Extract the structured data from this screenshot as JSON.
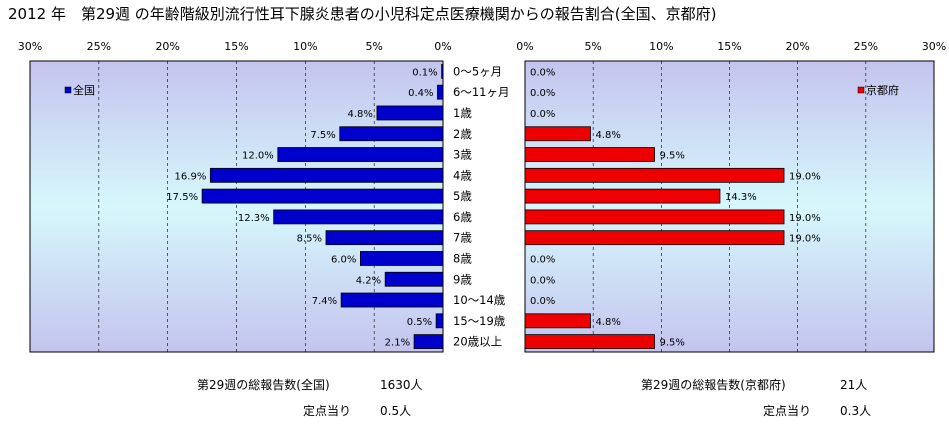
{
  "title": "2012 年　第29週 の年齢階級別流行性耳下腺炎患者の小児科定点医療機関からの報告割合(全国、京都府)",
  "colors": {
    "left_bar": "#0000cc",
    "right_bar": "#ee0000",
    "plot_bg_top": "#c8c8f0",
    "plot_bg_mid": "#d8f8fc"
  },
  "chart_data": [
    {
      "type": "bar",
      "orientation": "horizontal",
      "direction": "right-to-left",
      "legend": "全国",
      "legend_position": "top-left",
      "categories": [
        "0～5ヶ月",
        "6～11ヶ月",
        "1歳",
        "2歳",
        "3歳",
        "4歳",
        "5歳",
        "6歳",
        "7歳",
        "8歳",
        "9歳",
        "10～14歳",
        "15～19歳",
        "20歳以上"
      ],
      "values": [
        0.1,
        0.4,
        4.8,
        7.5,
        12.0,
        16.9,
        17.5,
        12.3,
        8.5,
        6.0,
        4.2,
        7.4,
        0.5,
        2.1
      ],
      "labels": [
        "0.1%",
        "0.4%",
        "4.8%",
        "7.5%",
        "12.0%",
        "16.9%",
        "17.5%",
        "12.3%",
        "8.5%",
        "6.0%",
        "4.2%",
        "7.4%",
        "0.5%",
        "2.1%"
      ],
      "xlim": [
        0,
        30
      ],
      "xticks": [
        "30%",
        "25%",
        "20%",
        "15%",
        "10%",
        "5%",
        "0%"
      ],
      "grid": true
    },
    {
      "type": "bar",
      "orientation": "horizontal",
      "direction": "left-to-right",
      "legend": "京都府",
      "legend_position": "top-right",
      "categories": [
        "0～5ヶ月",
        "6～11ヶ月",
        "1歳",
        "2歳",
        "3歳",
        "4歳",
        "5歳",
        "6歳",
        "7歳",
        "8歳",
        "9歳",
        "10～14歳",
        "15～19歳",
        "20歳以上"
      ],
      "values": [
        0.0,
        0.0,
        0.0,
        4.8,
        9.5,
        19.0,
        14.3,
        19.0,
        19.0,
        0.0,
        0.0,
        0.0,
        4.8,
        9.5
      ],
      "labels": [
        "0.0%",
        "0.0%",
        "0.0%",
        "4.8%",
        "9.5%",
        "19.0%",
        "14.3%",
        "19.0%",
        "19.0%",
        "0.0%",
        "0.0%",
        "0.0%",
        "4.8%",
        "9.5%"
      ],
      "xlim": [
        0,
        30
      ],
      "xticks": [
        "0%",
        "5%",
        "10%",
        "15%",
        "20%",
        "25%",
        "30%"
      ],
      "grid": true
    }
  ],
  "footer": {
    "left_total_label": "第29週の総報告数(全国)",
    "left_total_value": "1630人",
    "left_per_label": "定点当り",
    "left_per_value": "0.5人",
    "right_total_label": "第29週の総報告数(京都府)",
    "right_total_value": "21人",
    "right_per_label": "定点当り",
    "right_per_value": "0.3人"
  }
}
